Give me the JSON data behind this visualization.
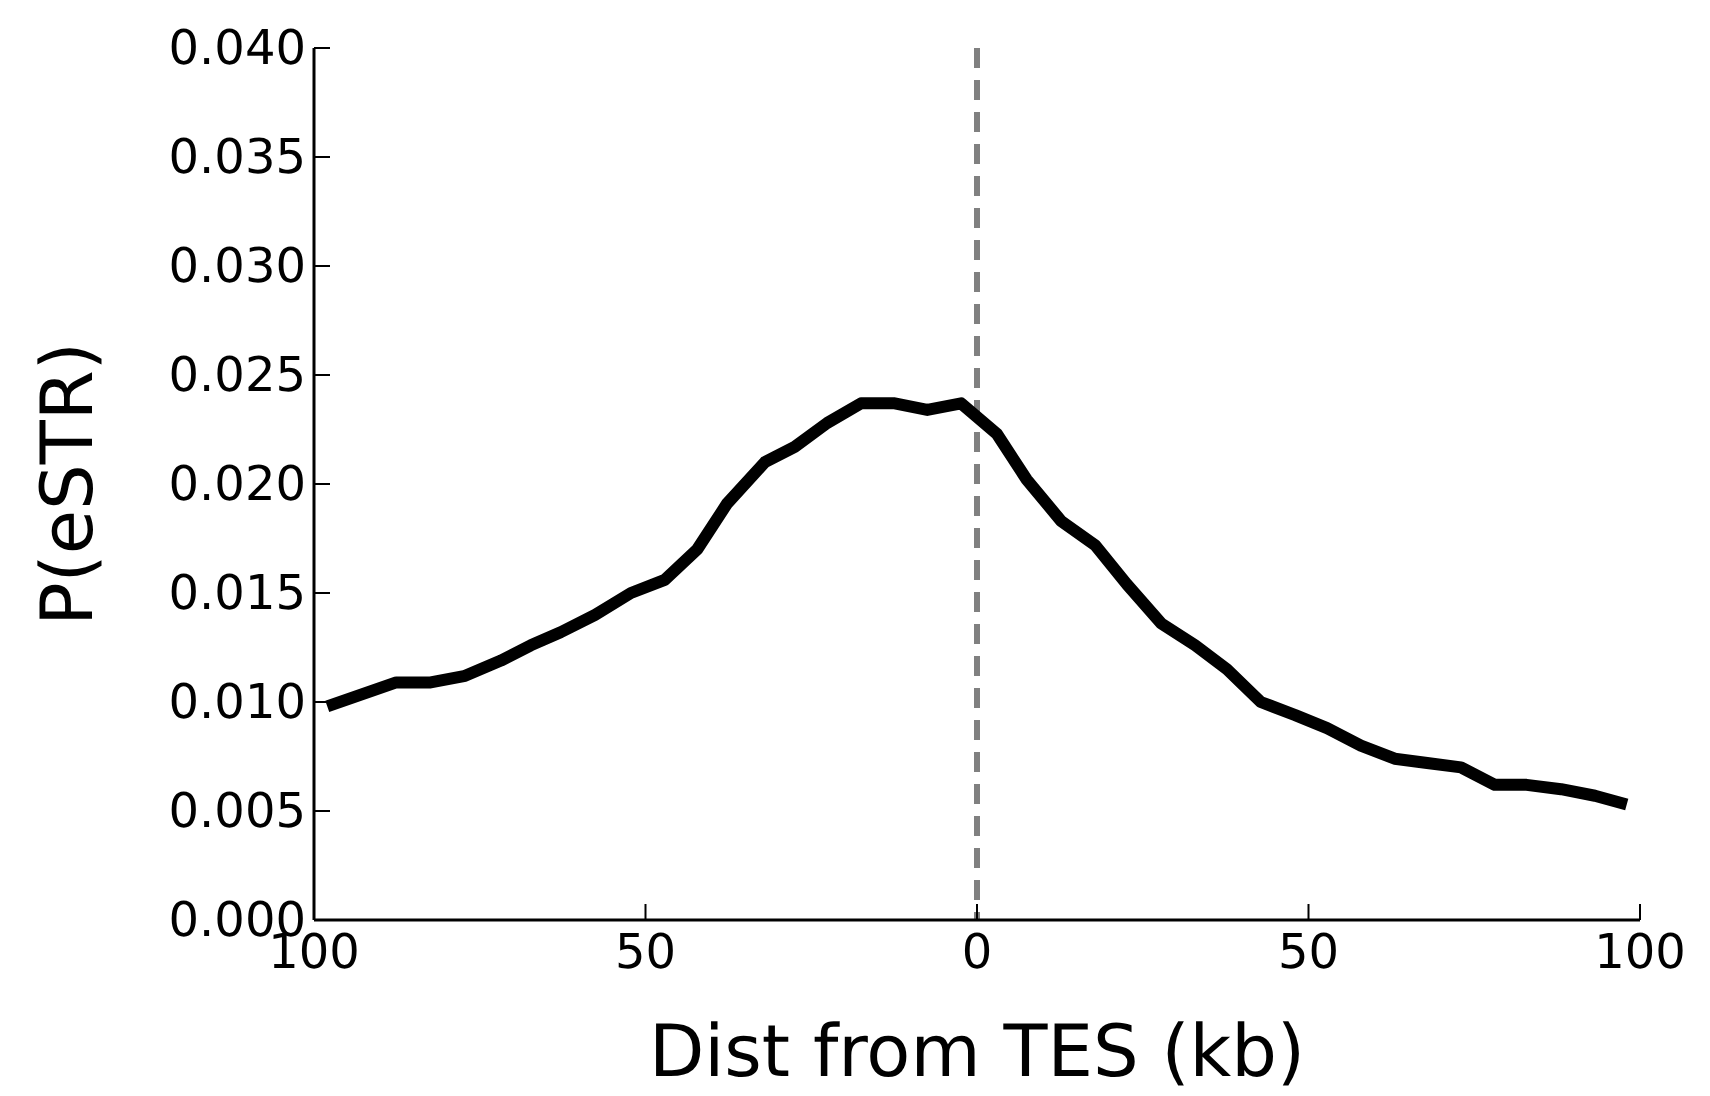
{
  "chart_data": {
    "type": "line",
    "xlabel": "Dist from TES (kb)",
    "ylabel": "P(eSTR)",
    "xlim": [
      -100,
      100
    ],
    "ylim": [
      0,
      0.04
    ],
    "xticks": [
      {
        "value": -100,
        "label": "100"
      },
      {
        "value": -50,
        "label": "50"
      },
      0,
      50,
      100
    ],
    "yticks": [
      {
        "value": 0,
        "label": "0.000"
      },
      {
        "value": 0.005,
        "label": "0.005"
      },
      {
        "value": 0.01,
        "label": "0.010"
      },
      {
        "value": 0.015,
        "label": "0.015"
      },
      {
        "value": 0.02,
        "label": "0.020"
      },
      {
        "value": 0.025,
        "label": "0.025"
      },
      {
        "value": 0.03,
        "label": "0.030"
      },
      {
        "value": 0.035,
        "label": "0.035"
      },
      {
        "value": 0.04,
        "label": "0.040"
      }
    ],
    "grid": false,
    "marker": "none",
    "line_style": "solid",
    "ref_lines": [
      {
        "axis": "x",
        "value": 0,
        "color": "#808080",
        "line_style": "dashed"
      }
    ],
    "series": [
      {
        "color": "#000000",
        "x": [
          -98,
          -87.6,
          -82.4,
          -77.2,
          -71.8,
          -67.3,
          -62.8,
          -57.6,
          -52.2,
          -47.1,
          -42.2,
          -37.7,
          -32,
          -27.5,
          -22.6,
          -17.5,
          -12.4,
          -7.5,
          -2.4,
          3,
          7.5,
          12.7,
          17.8,
          22.6,
          27.8,
          32.9,
          37.7,
          42.8,
          48,
          52.8,
          57.9,
          63,
          67.9,
          73,
          78.1,
          82.9,
          88.1,
          93.2,
          98
        ],
        "values": [
          0.0098,
          0.0109,
          0.0109,
          0.0112,
          0.0119,
          0.0126,
          0.0132,
          0.014,
          0.015,
          0.0156,
          0.017,
          0.0191,
          0.021,
          0.0217,
          0.0228,
          0.0237,
          0.0237,
          0.0234,
          0.0237,
          0.0223,
          0.0202,
          0.0183,
          0.0172,
          0.0154,
          0.0136,
          0.0126,
          0.0115,
          0.01,
          0.0094,
          0.0088,
          0.008,
          0.0074,
          0.0072,
          0.007,
          0.0062,
          0.0062,
          0.006,
          0.0057,
          0.0053
        ]
      }
    ]
  }
}
